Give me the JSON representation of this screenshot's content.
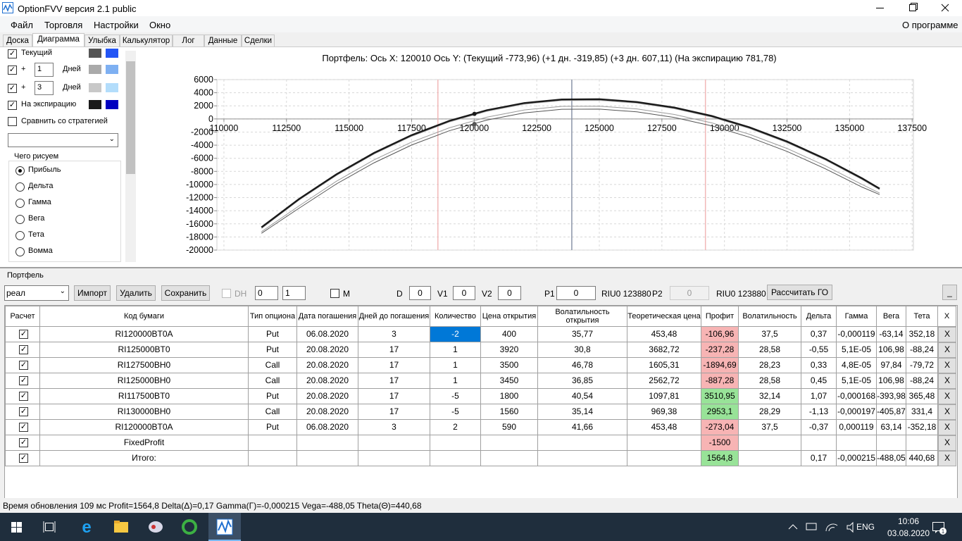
{
  "window": {
    "title": "OptionFVV версия 2.1 public"
  },
  "menu": {
    "items": [
      "Файл",
      "Торговля",
      "Настройки",
      "Окно"
    ],
    "about": "О программе"
  },
  "tabs": [
    "Доска",
    "Диаграмма",
    "Улыбка",
    "Калькулятор",
    "Лог",
    "Данные",
    "Сделки"
  ],
  "left_panel": {
    "curves": [
      {
        "label": "Текущий",
        "colors": [
          "#555555",
          "#2355f5"
        ]
      },
      {
        "prefix": "+",
        "days": "1",
        "unit": "Дней",
        "colors": [
          "#aaaaaa",
          "#7eb0f2"
        ]
      },
      {
        "prefix": "+",
        "days": "3",
        "unit": "Дней",
        "colors": [
          "#c8c8c8",
          "#b3ddfb"
        ]
      },
      {
        "label": "На экспирацию",
        "colors": [
          "#1a1a1a",
          "#0000c0"
        ]
      }
    ],
    "compare": "Сравнить со стратегией",
    "group_title": "Чего рисуем",
    "options": [
      "Прибыль",
      "Дельта",
      "Гамма",
      "Вега",
      "Тета",
      "Вомма"
    ]
  },
  "chart": {
    "type": "line",
    "title": "Портфель:  Ось X:  120010  Ось Y:   (Текущий -773,96)   (+1 дн. -319,85)   (+3 дн. 607,11)   (На экспирацию 781,78)",
    "x": [
      111500,
      113000,
      114500,
      116000,
      117500,
      119000,
      120500,
      122000,
      123500,
      125000,
      126500,
      128000,
      129500,
      131000,
      132500,
      134000,
      135500,
      136200
    ],
    "series": [
      {
        "name": "Текущий",
        "color": "#555555",
        "width": 1,
        "values": [
          -17440,
          -13620,
          -9900,
          -6690,
          -3980,
          -1810,
          -180,
          920,
          1470,
          1500,
          1080,
          230,
          -1060,
          -2790,
          -4950,
          -7540,
          -10400,
          -11530
        ]
      },
      {
        "name": "+1 дн.",
        "color": "#9a9a9a",
        "width": 1,
        "values": [
          -17200,
          -13270,
          -9490,
          -6240,
          -3530,
          -1360,
          270,
          1370,
          1920,
          1950,
          1530,
          680,
          -610,
          -2340,
          -4500,
          -7090,
          -10000,
          -11300
        ]
      },
      {
        "name": "+3 дн.",
        "color": "#bdbdbd",
        "width": 1,
        "values": [
          -16720,
          -12400,
          -8620,
          -5370,
          -2660,
          -490,
          1140,
          2240,
          2790,
          2820,
          2400,
          1550,
          260,
          -1470,
          -3630,
          -6220,
          -9250,
          -10810
        ]
      },
      {
        "name": "На экспирацию",
        "color": "#1a1a1a",
        "width": 2.5,
        "values": [
          -16540,
          -12220,
          -8440,
          -5190,
          -2480,
          -310,
          1320,
          2420,
          2970,
          3000,
          2580,
          1730,
          440,
          -1290,
          -3450,
          -6040,
          -9070,
          -10630
        ]
      }
    ],
    "markers": {
      "x": 120010,
      "values": [
        781.78,
        -773.96
      ],
      "colors": [
        "#1a1a1a",
        "#555555"
      ]
    },
    "vlines": [
      {
        "value": 118550,
        "color": "#f2b8b8"
      },
      {
        "value": 123900,
        "color": "#8a94a8"
      },
      {
        "value": 129240,
        "color": "#f2b8b8"
      }
    ],
    "xlim": [
      109720,
      137550
    ],
    "ylim": [
      -20000,
      6000
    ],
    "xticks": [
      110000,
      112500,
      115000,
      117500,
      120000,
      122500,
      125000,
      127500,
      130000,
      132500,
      135000,
      137500
    ],
    "yticks": [
      -20000,
      -18000,
      -16000,
      -14000,
      -12000,
      -10000,
      -8000,
      -6000,
      -4000,
      -2000,
      0,
      2000,
      4000,
      6000
    ],
    "grid": true
  },
  "portfolio": {
    "label": "Портфель",
    "account": "реал",
    "buttons": [
      "Импорт",
      "Удалить",
      "Сохранить"
    ],
    "dh": "DH",
    "spin1": "0",
    "spin2": "1",
    "m": "M",
    "fields": [
      {
        "label": "D",
        "value": "0"
      },
      {
        "label": "V1",
        "value": "0"
      },
      {
        "label": "V2",
        "value": "0"
      },
      {
        "label": "P1",
        "value": "0"
      }
    ],
    "p1_instrument": "RIU0 123880",
    "p2_label": "P2",
    "p2_value": "0",
    "p2_instrument": "RIU0 123880",
    "calc_button": "Рассчитать ГО",
    "min_button": "_",
    "table": {
      "headers": [
        "Расчет",
        "Код бумаги",
        "Тип опциона",
        "Дата погашения",
        "Дней до погашения",
        "Количество",
        "Цена открытия",
        "Волатильность открытия",
        "Теоретическая цена",
        "Профит",
        "Волатильность",
        "Дельта",
        "Гамма",
        "Вега",
        "Тета",
        "X"
      ],
      "rows": [
        [
          "RI120000BT0A",
          "Put",
          "06.08.2020",
          "3",
          "-2",
          "400",
          "35,77",
          "453,48",
          "-106,96",
          "37,5",
          "0,37",
          "-0,000119",
          "-63,14",
          "352,18"
        ],
        [
          "RI125000BT0",
          "Put",
          "20.08.2020",
          "17",
          "1",
          "3920",
          "30,8",
          "3682,72",
          "-237,28",
          "28,58",
          "-0,55",
          "5,1E-05",
          "106,98",
          "-88,24"
        ],
        [
          "RI127500BH0",
          "Call",
          "20.08.2020",
          "17",
          "1",
          "3500",
          "46,78",
          "1605,31",
          "-1894,69",
          "28,23",
          "0,33",
          "4,8E-05",
          "97,84",
          "-79,72"
        ],
        [
          "RI125000BH0",
          "Call",
          "20.08.2020",
          "17",
          "1",
          "3450",
          "36,85",
          "2562,72",
          "-887,28",
          "28,58",
          "0,45",
          "5,1E-05",
          "106,98",
          "-88,24"
        ],
        [
          "RI117500BT0",
          "Put",
          "20.08.2020",
          "17",
          "-5",
          "1800",
          "40,54",
          "1097,81",
          "3510,95",
          "32,14",
          "1,07",
          "-0,000168",
          "-393,98",
          "365,48"
        ],
        [
          "RI130000BH0",
          "Call",
          "20.08.2020",
          "17",
          "-5",
          "1560",
          "35,14",
          "969,38",
          "2953,1",
          "28,29",
          "-1,13",
          "-0,000197",
          "-405,87",
          "331,4"
        ],
        [
          "RI120000BT0A",
          "Put",
          "06.08.2020",
          "3",
          "2",
          "590",
          "41,66",
          "453,48",
          "-273,04",
          "37,5",
          "-0,37",
          "0,000119",
          "63,14",
          "-352,18"
        ],
        [
          "FixedProfit",
          null,
          null,
          null,
          null,
          null,
          null,
          null,
          "-1500",
          null,
          null,
          null,
          null,
          null
        ],
        [
          "Итого:",
          null,
          null,
          null,
          null,
          null,
          null,
          null,
          "1564,8",
          null,
          "0,17",
          "-0,000215",
          "-488,05",
          "440,68"
        ]
      ],
      "delete": "X"
    }
  },
  "status": "Время обновления 109 мс   Profit=1564,8 Delta(Δ)=0,17 Gamma(Γ)=-0,000215 Vega=-488,05 Theta(Θ)=440,68",
  "taskbar": {
    "language": "ENG",
    "time": "10:06",
    "date": "03.08.2020"
  }
}
